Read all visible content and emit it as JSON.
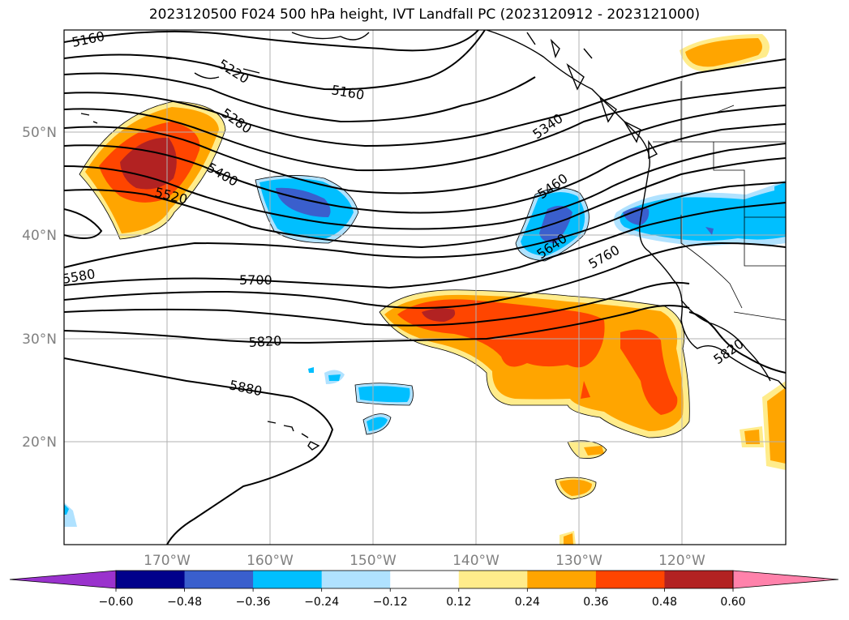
{
  "title": "2023120500 F024 500 hPa height, IVT Landfall PC (2023120912 - 2023121000)",
  "lat_labels": [
    "50°N",
    "40°N",
    "30°N",
    "20°N"
  ],
  "lon_labels": [
    "170°W",
    "160°W",
    "150°W",
    "140°W",
    "130°W",
    "120°W"
  ],
  "contour_labels": [
    "5160",
    "5220",
    "5160",
    "5280",
    "5340",
    "5400",
    "5520",
    "5460",
    "5580",
    "5640",
    "5700",
    "5760",
    "5820",
    "5820",
    "5880"
  ],
  "colorbar": {
    "ticks": [
      "−0.60",
      "−0.48",
      "−0.36",
      "−0.24",
      "−0.12",
      "0.12",
      "0.24",
      "0.36",
      "0.48",
      "0.60"
    ],
    "colors": [
      "#9a32cd",
      "#00008b",
      "#3a5fcd",
      "#00bfff",
      "#b0e2ff",
      "#ffffff",
      "#ffec8b",
      "#ffa500",
      "#ff4500",
      "#b22222",
      "#ff82ab"
    ]
  }
}
